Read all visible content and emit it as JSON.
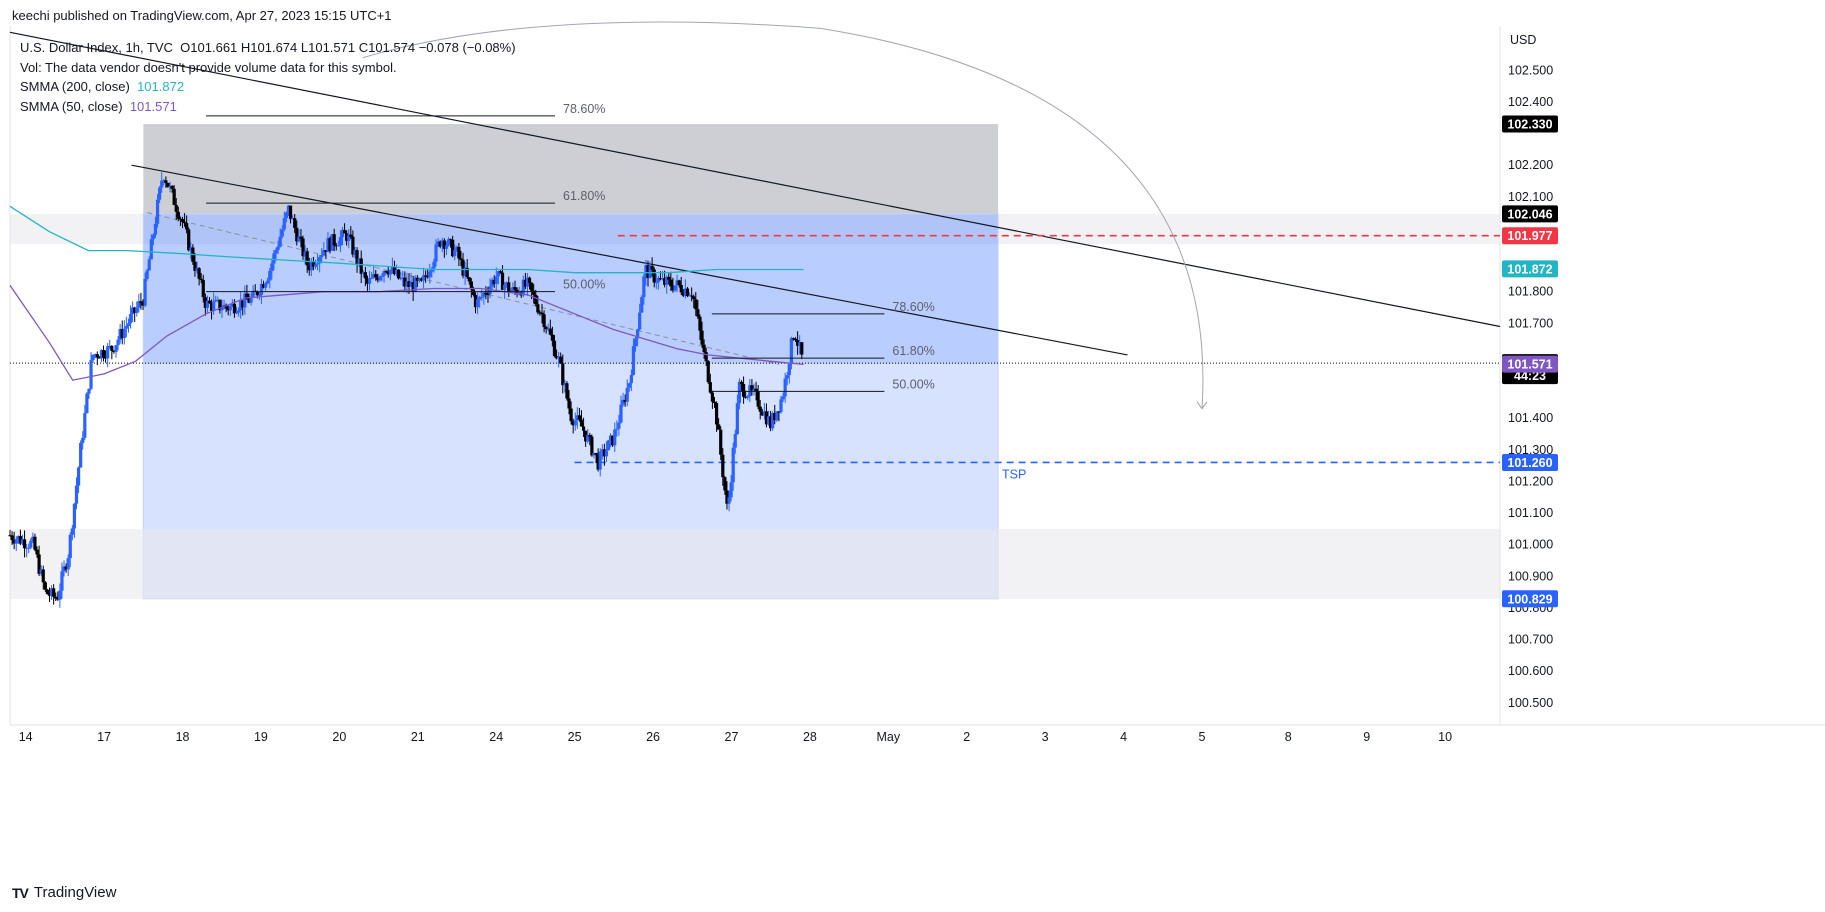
{
  "header": {
    "published": "keechi published on TradingView.com, Apr 27, 2023 15:15 UTC+1"
  },
  "legend": {
    "symbol": "U.S. Dollar Index, 1h, TVC",
    "ohlc": "O101.661  H101.674  L101.571  C101.574  −0.078 (−0.08%)",
    "vol_note": "Vol: The data vendor doesn't provide volume data for this symbol.",
    "smma200_label": "SMMA (200, close)",
    "smma200_value": "101.872",
    "smma50_label": "SMMA (50, close)",
    "smma50_value": "101.571"
  },
  "footer": {
    "logo": "TV",
    "brand": "TradingView"
  },
  "colors": {
    "up": "#2962ff",
    "down": "#000000",
    "smma200": "#22b5c4",
    "smma50": "#7e57c2",
    "red_line": "#f23645",
    "blue_line": "#2962ff"
  },
  "chart_data": {
    "type": "candlestick",
    "symbol": "U.S. Dollar Index",
    "timeframe": "1h",
    "currency": "USD",
    "y_axis": {
      "ylim": [
        100.43,
        102.64
      ],
      "ticks": [
        {
          "v": 102.5,
          "label": "102.500"
        },
        {
          "v": 102.4,
          "label": "102.400"
        },
        {
          "v": 102.2,
          "label": "102.200"
        },
        {
          "v": 102.1,
          "label": "102.100"
        },
        {
          "v": 101.8,
          "label": "101.800"
        },
        {
          "v": 101.7,
          "label": "101.700"
        },
        {
          "v": 101.4,
          "label": "101.400"
        },
        {
          "v": 101.3,
          "label": "101.300"
        },
        {
          "v": 101.2,
          "label": "101.200"
        },
        {
          "v": 101.1,
          "label": "101.100"
        },
        {
          "v": 101.0,
          "label": "101.000"
        },
        {
          "v": 100.9,
          "label": "100.900"
        },
        {
          "v": 100.8,
          "label": "100.800"
        },
        {
          "v": 100.7,
          "label": "100.700"
        },
        {
          "v": 100.6,
          "label": "100.600"
        },
        {
          "v": 100.5,
          "label": "100.500"
        }
      ]
    },
    "x_axis": {
      "xlim": [
        -0.2,
        18.8
      ],
      "ticks": [
        {
          "x": 0.0,
          "label": "14"
        },
        {
          "x": 1.0,
          "label": "17"
        },
        {
          "x": 2.0,
          "label": "18"
        },
        {
          "x": 3.0,
          "label": "19"
        },
        {
          "x": 4.0,
          "label": "20"
        },
        {
          "x": 5.0,
          "label": "21"
        },
        {
          "x": 6.0,
          "label": "24"
        },
        {
          "x": 7.0,
          "label": "25"
        },
        {
          "x": 8.0,
          "label": "26"
        },
        {
          "x": 9.0,
          "label": "27"
        },
        {
          "x": 10.0,
          "label": "28"
        },
        {
          "x": 11.0,
          "label": "May"
        },
        {
          "x": 12.0,
          "label": "2"
        },
        {
          "x": 13.0,
          "label": "3"
        },
        {
          "x": 14.0,
          "label": "4"
        },
        {
          "x": 15.0,
          "label": "5"
        },
        {
          "x": 16.1,
          "label": "8"
        },
        {
          "x": 17.1,
          "label": "9"
        },
        {
          "x": 18.1,
          "label": "10"
        }
      ]
    },
    "price_path": [
      [
        -0.2,
        101.03
      ],
      [
        0.1,
        101.0
      ],
      [
        0.25,
        100.85
      ],
      [
        0.4,
        100.83
      ],
      [
        0.55,
        100.98
      ],
      [
        0.7,
        101.3
      ],
      [
        0.85,
        101.6
      ],
      [
        1.1,
        101.62
      ],
      [
        1.3,
        101.7
      ],
      [
        1.5,
        101.78
      ],
      [
        1.75,
        102.18
      ],
      [
        2.0,
        102.02
      ],
      [
        2.3,
        101.76
      ],
      [
        2.6,
        101.75
      ],
      [
        2.9,
        101.78
      ],
      [
        3.1,
        101.86
      ],
      [
        3.35,
        102.06
      ],
      [
        3.6,
        101.88
      ],
      [
        3.85,
        101.95
      ],
      [
        4.1,
        101.98
      ],
      [
        4.35,
        101.82
      ],
      [
        4.6,
        101.88
      ],
      [
        4.85,
        101.82
      ],
      [
        5.05,
        101.82
      ],
      [
        5.3,
        101.97
      ],
      [
        5.5,
        101.92
      ],
      [
        5.75,
        101.76
      ],
      [
        6.0,
        101.85
      ],
      [
        6.2,
        101.8
      ],
      [
        6.4,
        101.82
      ],
      [
        6.6,
        101.72
      ],
      [
        6.8,
        101.58
      ],
      [
        6.95,
        101.41
      ],
      [
        7.1,
        101.37
      ],
      [
        7.3,
        101.26
      ],
      [
        7.5,
        101.34
      ],
      [
        7.7,
        101.52
      ],
      [
        7.9,
        101.87
      ],
      [
        8.1,
        101.83
      ],
      [
        8.3,
        101.82
      ],
      [
        8.5,
        101.8
      ],
      [
        8.65,
        101.6
      ],
      [
        8.8,
        101.42
      ],
      [
        8.95,
        101.1
      ],
      [
        9.1,
        101.5
      ],
      [
        9.3,
        101.47
      ],
      [
        9.5,
        101.38
      ],
      [
        9.65,
        101.47
      ],
      [
        9.8,
        101.68
      ],
      [
        9.92,
        101.57
      ]
    ],
    "smma200": [
      [
        -0.2,
        102.07
      ],
      [
        0.3,
        101.99
      ],
      [
        0.8,
        101.93
      ],
      [
        1.3,
        101.93
      ],
      [
        2.0,
        101.92
      ],
      [
        2.6,
        101.91
      ],
      [
        3.3,
        101.9
      ],
      [
        4.0,
        101.89
      ],
      [
        4.6,
        101.88
      ],
      [
        5.2,
        101.87
      ],
      [
        5.8,
        101.87
      ],
      [
        6.4,
        101.87
      ],
      [
        7.0,
        101.86
      ],
      [
        7.6,
        101.86
      ],
      [
        8.2,
        101.86
      ],
      [
        8.8,
        101.87
      ],
      [
        9.4,
        101.87
      ],
      [
        9.92,
        101.87
      ]
    ],
    "smma50": [
      [
        -0.2,
        101.82
      ],
      [
        0.3,
        101.64
      ],
      [
        0.6,
        101.52
      ],
      [
        1.0,
        101.54
      ],
      [
        1.4,
        101.58
      ],
      [
        1.8,
        101.66
      ],
      [
        2.3,
        101.73
      ],
      [
        2.8,
        101.78
      ],
      [
        3.3,
        101.79
      ],
      [
        3.8,
        101.8
      ],
      [
        4.5,
        101.8
      ],
      [
        5.2,
        101.81
      ],
      [
        5.8,
        101.81
      ],
      [
        6.4,
        101.79
      ],
      [
        7.0,
        101.73
      ],
      [
        7.5,
        101.68
      ],
      [
        7.9,
        101.65
      ],
      [
        8.3,
        101.62
      ],
      [
        8.7,
        101.6
      ],
      [
        9.1,
        101.59
      ],
      [
        9.5,
        101.58
      ],
      [
        9.92,
        101.57
      ]
    ],
    "zones": [
      {
        "name": "supply-zone-grey",
        "x1": 1.5,
        "x2": 12.4,
        "y1": 102.33,
        "y2": 102.046
      },
      {
        "name": "resistance-band",
        "x1": -0.2,
        "x2": 18.8,
        "y1": 102.046,
        "y2": 101.95
      },
      {
        "name": "blue-box-upper",
        "x1": 1.5,
        "x2": 12.4,
        "y1": 102.046,
        "y2": 101.574
      },
      {
        "name": "blue-box-lower",
        "x1": 1.5,
        "x2": 12.4,
        "y1": 101.574,
        "y2": 100.829
      },
      {
        "name": "support-band",
        "x1": -0.2,
        "x2": 18.8,
        "y1": 101.05,
        "y2": 100.829
      }
    ],
    "trendlines": [
      {
        "name": "upper-trendline",
        "p1": [
          -0.2,
          102.62
        ],
        "p2": [
          18.8,
          101.69
        ]
      },
      {
        "name": "lower-trendline",
        "p1": [
          1.35,
          102.2
        ],
        "p2": [
          14.05,
          101.6
        ]
      }
    ],
    "horizontal_lines": [
      {
        "name": "red-dashed-level",
        "value": 101.977,
        "x_from": 7.55,
        "style": "dashed",
        "color_key": "red_line"
      },
      {
        "name": "tsp-dashed-level",
        "value": 101.26,
        "x_from": 7.0,
        "style": "dashed",
        "color_key": "blue_line",
        "label": "TSP"
      },
      {
        "name": "last-price-line",
        "value": 101.574,
        "x_from": -0.2,
        "style": "dotted",
        "color_key": "down"
      }
    ],
    "fib_levels": [
      {
        "label": "78.60%",
        "value": 102.356,
        "x1": 2.3,
        "x2": 6.75
      },
      {
        "label": "61.80%",
        "value": 102.08,
        "x1": 2.3,
        "x2": 6.75
      },
      {
        "label": "50.00%",
        "value": 101.8,
        "x1": 2.3,
        "x2": 6.75
      },
      {
        "label": "78.60%",
        "value": 101.73,
        "x1": 8.75,
        "x2": 10.95
      },
      {
        "label": "61.80%",
        "value": 101.59,
        "x1": 8.75,
        "x2": 10.95
      },
      {
        "label": "50.00%",
        "value": 101.485,
        "x1": 8.75,
        "x2": 10.95
      }
    ],
    "price_labels": [
      {
        "value": 102.33,
        "label": "102.330",
        "color_key": "down"
      },
      {
        "value": 102.046,
        "label": "102.046",
        "color_key": "down"
      },
      {
        "value": 101.977,
        "label": "101.977",
        "color_key": "red_line"
      },
      {
        "value": 101.872,
        "label": "101.872",
        "color_key": "smma200"
      },
      {
        "value": 101.574,
        "label": "101.574",
        "sub": "44:23",
        "color_key": "down"
      },
      {
        "value": 101.571,
        "label": "101.571",
        "color_key": "smma50"
      },
      {
        "value": 101.26,
        "label": "101.260",
        "color_key": "blue_line"
      },
      {
        "value": 100.829,
        "label": "100.829",
        "color_key": "blue_line"
      }
    ],
    "projection_arrow": {
      "from": [
        10.9,
        102.62
      ],
      "to": [
        15.0,
        101.43
      ]
    }
  }
}
